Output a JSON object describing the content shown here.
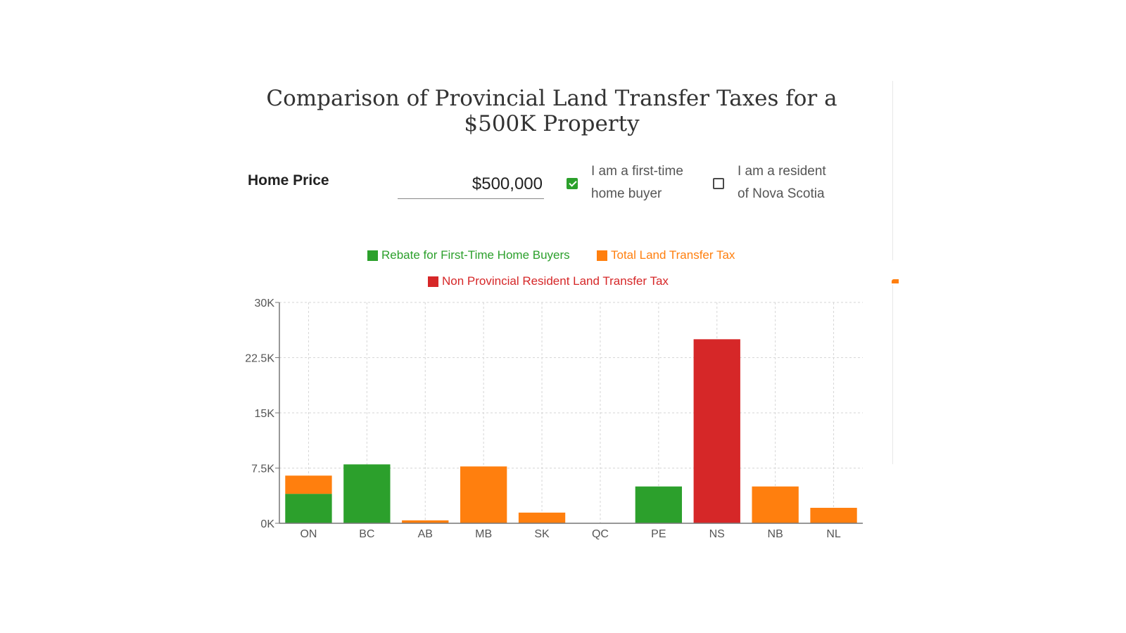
{
  "title": {
    "line1": "Comparison of Provincial Land Transfer Taxes for a",
    "line2": "$500K Property"
  },
  "form": {
    "home_price_label": "Home Price",
    "home_price_value": "$500,000",
    "first_time_label_1": "I am a first-time",
    "first_time_label_2": "home buyer",
    "first_time_checked": true,
    "ns_resident_label_1": "I am a resident",
    "ns_resident_label_2": "of Nova Scotia",
    "ns_resident_checked": false
  },
  "colors": {
    "green": "#2ca02c",
    "orange": "#ff7f0e",
    "red": "#d62728"
  },
  "chart_data": {
    "type": "bar",
    "stacked": true,
    "categories": [
      "ON",
      "BC",
      "AB",
      "MB",
      "SK",
      "QC",
      "PE",
      "NS",
      "NB",
      "NL"
    ],
    "series": [
      {
        "name": "Rebate for First-Time Home Buyers",
        "color": "#2ca02c",
        "values": [
          4000,
          8000,
          0,
          0,
          0,
          0,
          5000,
          0,
          0,
          0
        ]
      },
      {
        "name": "Total Land Transfer Tax",
        "color": "#ff7f0e",
        "values": [
          2475,
          0,
          400,
          7720,
          1450,
          0,
          0,
          0,
          5000,
          2100
        ]
      },
      {
        "name": "Non Provincial Resident Land Transfer Tax",
        "color": "#d62728",
        "values": [
          0,
          0,
          0,
          0,
          0,
          0,
          0,
          25000,
          0,
          0
        ]
      }
    ],
    "yticks": [
      "0K",
      "7.5K",
      "15K",
      "22.5K",
      "30K"
    ],
    "ytick_values": [
      0,
      7500,
      15000,
      22500,
      30000
    ],
    "ylim": [
      0,
      30000
    ],
    "grid": true,
    "legend_position": "top"
  }
}
